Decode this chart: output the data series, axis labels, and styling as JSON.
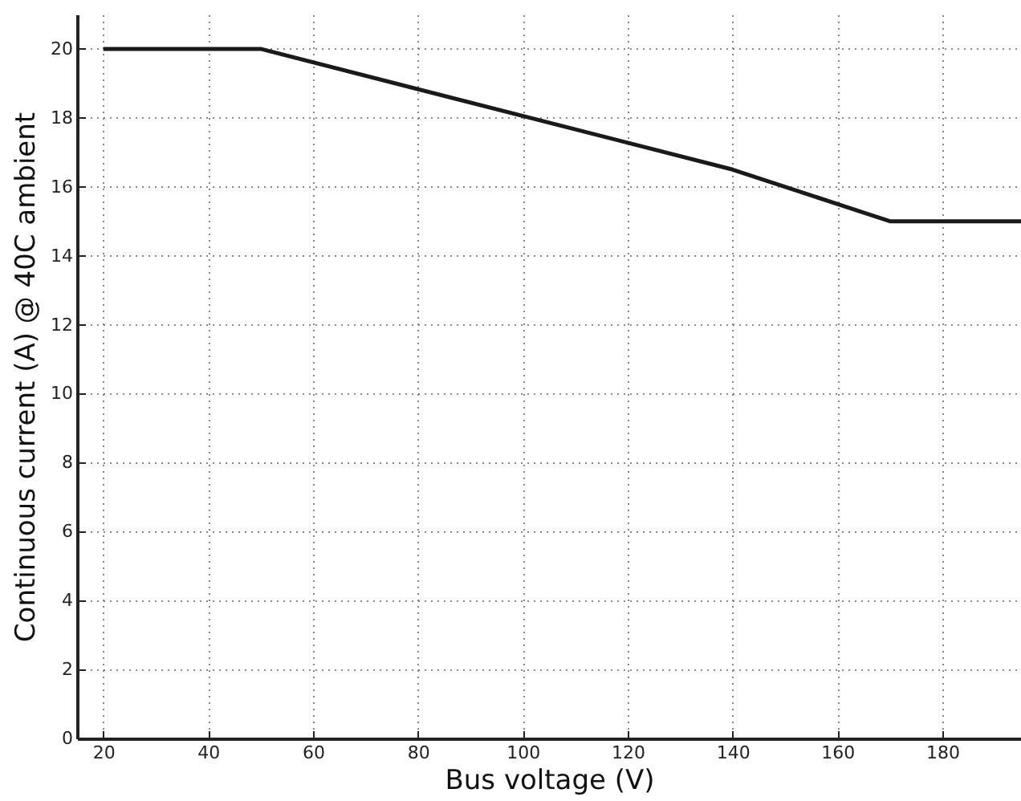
{
  "chart_data": {
    "type": "line",
    "xlabel": "Bus voltage (V)",
    "ylabel": "Continuous current (A) @ 40C ambient",
    "x": [
      20,
      50,
      140,
      170,
      195
    ],
    "series": [
      {
        "color": "#1a1a1a",
        "values": [
          20,
          20,
          16.5,
          15,
          15
        ]
      }
    ],
    "xlim": [
      15,
      195
    ],
    "xticks": [
      20,
      40,
      60,
      80,
      100,
      120,
      140,
      160,
      180
    ],
    "ylim": [
      0,
      21
    ],
    "yticks": [
      0,
      2,
      4,
      6,
      8,
      10,
      12,
      14,
      16,
      18,
      20
    ],
    "grid": true,
    "line_style": "solid",
    "marker": "none"
  }
}
